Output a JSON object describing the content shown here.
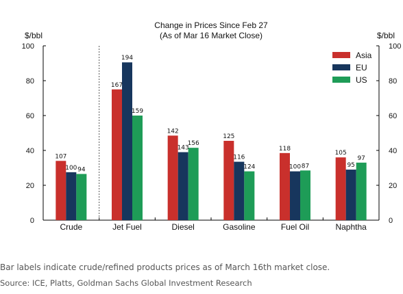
{
  "chart_data": {
    "type": "bar",
    "title": "Change in Prices Since Feb 27",
    "subtitle": "(As of Mar 16 Market Close)",
    "ylabel_left": "$/bbl",
    "ylabel_right": "$/bbl",
    "ylim": [
      0,
      100
    ],
    "yticks": [
      0,
      20,
      40,
      60,
      80,
      100
    ],
    "categories": [
      "Crude",
      "Jet Fuel",
      "Diesel",
      "Gasoline",
      "Fuel Oil",
      "Naphtha"
    ],
    "series": [
      {
        "name": "Asia",
        "color": "#c9302c",
        "values": [
          34,
          75,
          48.5,
          45.5,
          38.5,
          36
        ],
        "labels": [
          "107",
          "167",
          "142",
          "125",
          "118",
          "105"
        ]
      },
      {
        "name": "EU",
        "color": "#17365d",
        "values": [
          27.5,
          90.5,
          39,
          33.5,
          28,
          29
        ],
        "labels": [
          "100",
          "194",
          "143",
          "116",
          "100",
          "95"
        ]
      },
      {
        "name": "US",
        "color": "#1e9c57",
        "values": [
          26.5,
          60,
          41.5,
          28,
          28.5,
          33
        ],
        "labels": [
          "94",
          "159",
          "156",
          "124",
          "87",
          "97"
        ]
      }
    ],
    "legend_position": "top-right",
    "grid": false
  },
  "caption": "Bar labels indicate crude/refined products prices as of March 16th market close.",
  "source": "Source: ICE, Platts, Goldman Sachs Global Investment Research"
}
